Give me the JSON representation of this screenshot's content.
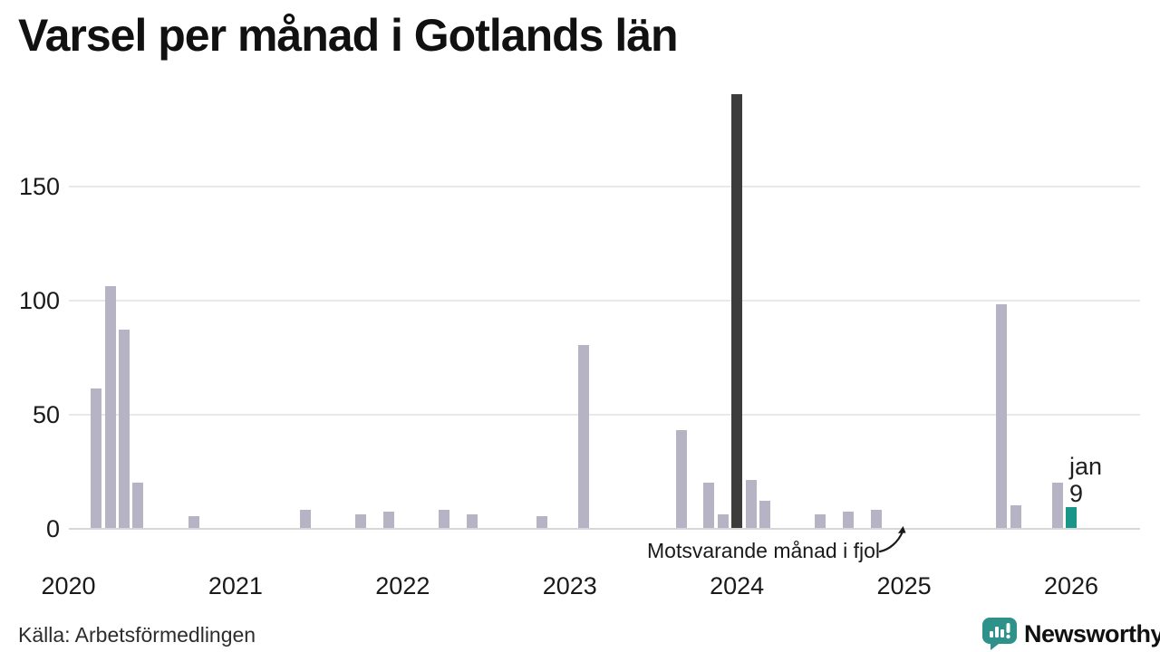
{
  "title": "Varsel per månad i Gotlands län",
  "annotation": {
    "text": "Motsvarande månad i fjol",
    "arrow_points_to_month": "2025-01"
  },
  "highlight_label": {
    "month_label": "jan",
    "value_label": "9"
  },
  "footer": {
    "source_label": "Källa: Arbetsförmedlingen",
    "brand": "Newsworthy"
  },
  "colors": {
    "bar": "#b6b3c5",
    "bar_dark": "#3c3c3c",
    "bar_accent": "#1a9689",
    "grid": "#e9e9e9",
    "axis_line": "#d7d7d7",
    "text": "#1a1a1a",
    "brand_teal": "#2e918a"
  },
  "chart_data": {
    "type": "bar",
    "title": "Varsel per månad i Gotlands län",
    "source": "Källa: Arbetsförmedlingen",
    "x_axis": {
      "labels": [
        "2020",
        "2021",
        "2022",
        "2023",
        "2024",
        "2025",
        "2026"
      ],
      "range_from": "2020-01",
      "range_to": "2026-01",
      "grid": false
    },
    "y_axis": {
      "ticks": [
        0,
        50,
        100,
        150
      ],
      "label": "",
      "grid": true,
      "max_drawn_value": 190
    },
    "legend": "none",
    "points": [
      {
        "month": "2020-03",
        "value": 61,
        "type": "normal"
      },
      {
        "month": "2020-04",
        "value": 106,
        "type": "normal"
      },
      {
        "month": "2020-05",
        "value": 87,
        "type": "normal"
      },
      {
        "month": "2020-06",
        "value": 20,
        "type": "normal"
      },
      {
        "month": "2020-10",
        "value": 5,
        "type": "normal"
      },
      {
        "month": "2021-06",
        "value": 8,
        "type": "normal"
      },
      {
        "month": "2021-10",
        "value": 6,
        "type": "normal"
      },
      {
        "month": "2021-12",
        "value": 7,
        "type": "normal"
      },
      {
        "month": "2022-04",
        "value": 8,
        "type": "normal"
      },
      {
        "month": "2022-06",
        "value": 6,
        "type": "normal"
      },
      {
        "month": "2022-11",
        "value": 5,
        "type": "normal"
      },
      {
        "month": "2023-02",
        "value": 80,
        "type": "normal"
      },
      {
        "month": "2023-09",
        "value": 43,
        "type": "normal"
      },
      {
        "month": "2023-11",
        "value": 20,
        "type": "normal"
      },
      {
        "month": "2023-12",
        "value": 6,
        "type": "normal"
      },
      {
        "month": "2024-01",
        "value": 190,
        "type": "dark"
      },
      {
        "month": "2024-02",
        "value": 21,
        "type": "normal"
      },
      {
        "month": "2024-03",
        "value": 12,
        "type": "normal"
      },
      {
        "month": "2024-07",
        "value": 6,
        "type": "normal"
      },
      {
        "month": "2024-09",
        "value": 7,
        "type": "normal"
      },
      {
        "month": "2024-11",
        "value": 8,
        "type": "normal"
      },
      {
        "month": "2025-08",
        "value": 98,
        "type": "normal"
      },
      {
        "month": "2025-09",
        "value": 10,
        "type": "normal"
      },
      {
        "month": "2025-12",
        "value": 20,
        "type": "normal"
      },
      {
        "month": "2026-01",
        "value": 9,
        "type": "accent"
      }
    ]
  }
}
